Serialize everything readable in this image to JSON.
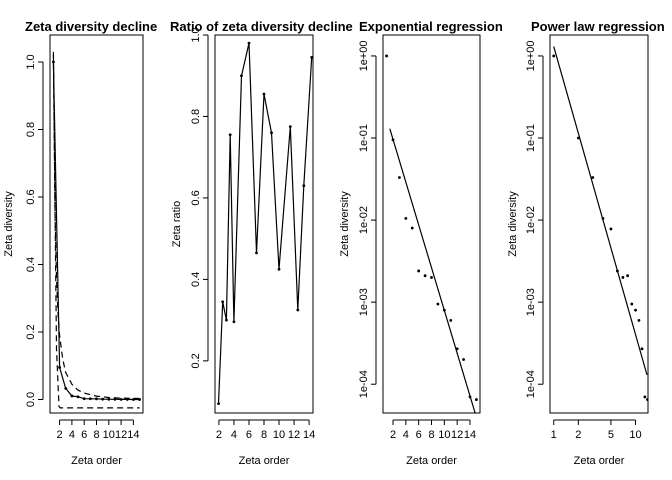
{
  "chart_data": [
    {
      "type": "line",
      "title": "Zeta diversity decline",
      "xlabel": "Zeta order",
      "ylabel": "Zeta diversity",
      "xlim": [
        0.44,
        15.56
      ],
      "ylim": [
        -0.04,
        1.08
      ],
      "xticks": [
        2,
        4,
        6,
        8,
        10,
        12,
        14
      ],
      "yticks": [
        0.0,
        0.2,
        0.4,
        0.6,
        0.8,
        1.0
      ],
      "yscale": "linear",
      "series": [
        {
          "style": "solid",
          "points": true,
          "x": [
            1,
            2,
            3,
            4,
            5,
            6,
            7,
            8,
            9,
            10,
            11,
            12,
            13,
            14,
            15
          ],
          "y": [
            1.0,
            0.095,
            0.033,
            0.0105,
            0.008,
            0.0024,
            0.0021,
            0.002,
            0.00095,
            0.0008,
            0.0006,
            0.00027,
            0.0002,
            7e-05,
            6.5e-05
          ]
        },
        {
          "style": "dashed",
          "points": false,
          "x": [
            1,
            1.25,
            1.5,
            1.75,
            2,
            2.5,
            3,
            4,
            5,
            6,
            8,
            10,
            12,
            15
          ],
          "y": [
            1.03,
            0.56,
            0.36,
            0.25,
            0.19,
            0.12,
            0.08,
            0.045,
            0.028,
            0.019,
            0.01,
            0.006,
            0.004,
            0.003
          ]
        },
        {
          "style": "dashed",
          "points": false,
          "x": [
            1,
            1.5,
            1.9,
            2.1,
            15
          ],
          "y": [
            1.02,
            0.15,
            -0.02,
            -0.025,
            -0.025
          ]
        }
      ]
    },
    {
      "type": "line",
      "title": "Ratio of zeta diversity decline",
      "xlabel": "Zeta order",
      "ylabel": "Zeta ratio",
      "xlim": [
        1.48,
        14.52
      ],
      "ylim": [
        0.072,
        1.0
      ],
      "xticks": [
        2,
        4,
        6,
        8,
        10,
        12,
        14
      ],
      "yticks": [
        0.2,
        0.4,
        0.6,
        0.8,
        1.0
      ],
      "yscale": "linear",
      "series": [
        {
          "style": "solid",
          "points": true,
          "x": [
            1.95,
            2.5,
            3.0,
            3.5,
            4.0,
            5.0,
            6.0,
            7.0,
            8.0,
            9.0,
            10.0,
            11.5,
            12.5,
            13.3,
            14.35
          ],
          "y": [
            0.095,
            0.345,
            0.3,
            0.755,
            0.296,
            0.9,
            0.98,
            0.465,
            0.855,
            0.76,
            0.425,
            0.775,
            0.325,
            0.63,
            0.945
          ]
        }
      ]
    },
    {
      "type": "scatter",
      "title": "Exponential regression",
      "xlabel": "Zeta order",
      "ylabel": "Zeta diversity",
      "xlim": [
        0.44,
        15.56
      ],
      "ylim": [
        4.46e-05,
        1.8
      ],
      "xticks": [
        2,
        4,
        6,
        8,
        10,
        12,
        14
      ],
      "yticks": [
        0.0001,
        0.001,
        0.01,
        0.1,
        1
      ],
      "ytick_labels": [
        "1e-04",
        "1e-03",
        "1e-02",
        "1e-01",
        "1e+00"
      ],
      "yscale": "log",
      "points": {
        "x": [
          1,
          2,
          3,
          4,
          5,
          6,
          7,
          8,
          9,
          10,
          11,
          12,
          13,
          14,
          15
        ],
        "y": [
          1.0,
          0.095,
          0.033,
          0.0105,
          0.008,
          0.0024,
          0.0021,
          0.002,
          0.00095,
          0.0008,
          0.0006,
          0.00027,
          0.0002,
          7e-05,
          6.5e-05
        ]
      },
      "fit": {
        "x": [
          1.5,
          14.8
        ],
        "y": [
          0.13,
          4.46e-05
        ]
      }
    },
    {
      "type": "scatter",
      "title": "Power law regression",
      "xlabel": "Zeta order",
      "ylabel": "Zeta diversity",
      "xlim": [
        0.9,
        14.2
      ],
      "ylim": [
        4.46e-05,
        1.8
      ],
      "xscale": "log",
      "xticks": [
        1,
        2,
        5,
        10
      ],
      "yticks": [
        0.0001,
        0.001,
        0.01,
        0.1,
        1
      ],
      "ytick_labels": [
        "1e-04",
        "1e-03",
        "1e-02",
        "1e-01",
        "1e+00"
      ],
      "yscale": "log",
      "points": {
        "x": [
          1,
          2,
          3,
          4,
          5,
          6,
          7,
          8,
          9,
          10,
          11,
          12,
          13,
          14
        ],
        "y": [
          1.0,
          0.1,
          0.033,
          0.0105,
          0.0078,
          0.0024,
          0.002,
          0.0021,
          0.00095,
          0.0008,
          0.0006,
          0.00027,
          7e-05,
          6.5e-05
        ]
      },
      "fit": {
        "x": [
          1.0,
          13.8
        ],
        "y": [
          1.3,
          0.00013
        ]
      }
    }
  ]
}
